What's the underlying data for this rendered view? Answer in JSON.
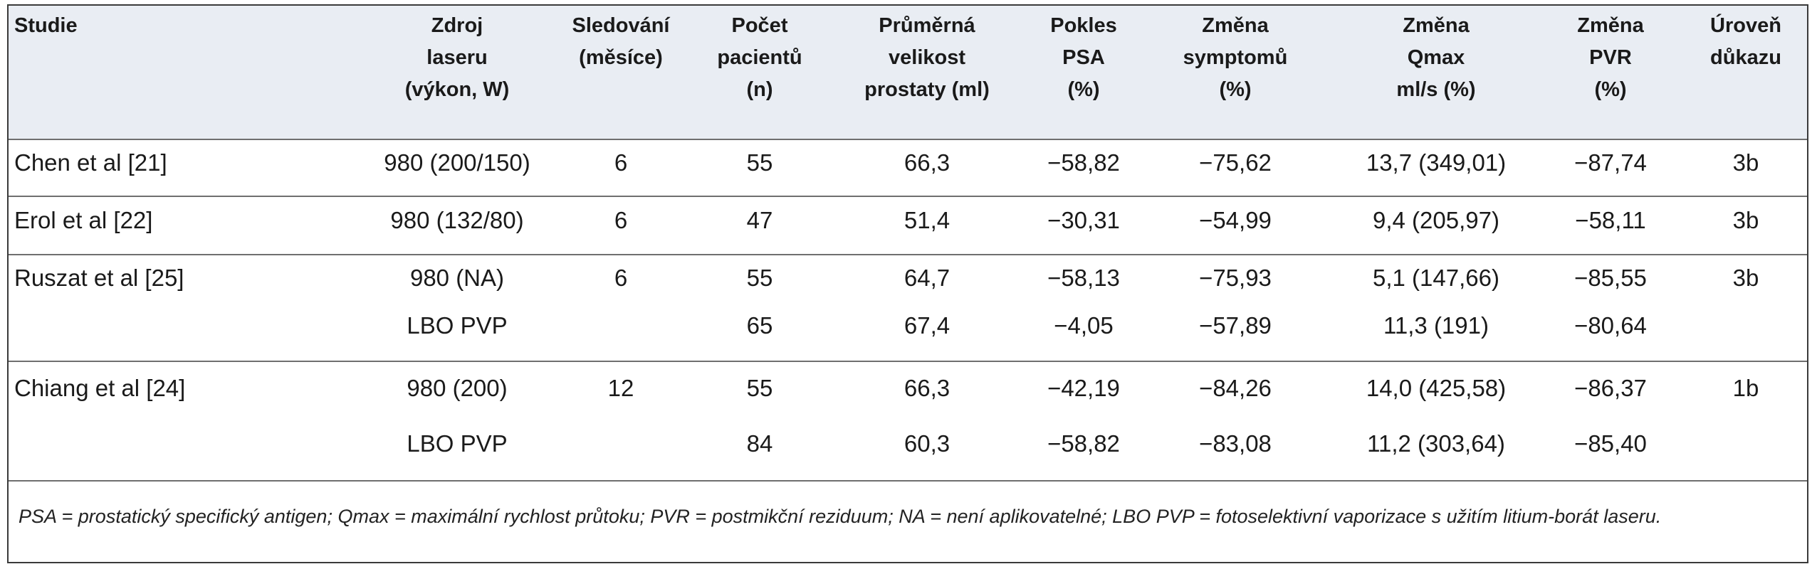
{
  "table": {
    "headers": [
      [
        "Studie"
      ],
      [
        "Zdroj",
        "laseru",
        "(výkon, W)"
      ],
      [
        "Sledování",
        "(měsíce)"
      ],
      [
        "Počet",
        "pacientů",
        "(n)"
      ],
      [
        "Průměrná",
        "velikost",
        "prostaty (ml)"
      ],
      [
        "Pokles",
        "PSA",
        "(%)"
      ],
      [
        "Změna",
        "symptomů",
        "(%)"
      ],
      [
        "Změna",
        "Qmax",
        "ml/s (%)"
      ],
      [
        "Změna",
        "PVR",
        "(%)"
      ],
      [
        "Úroveň",
        "důkazu"
      ]
    ],
    "rows": [
      [
        "Chen et al [21]",
        "980 (200/150)",
        "6",
        "55",
        "66,3",
        "−58,82",
        "−75,62",
        "13,7 (349,01)",
        "−87,74",
        "3b"
      ],
      [
        "Erol et al [22]",
        "980 (132/80)",
        "6",
        "47",
        "51,4",
        "−30,31",
        "−54,99",
        "9,4 (205,97)",
        "−58,11",
        "3b"
      ],
      [
        "Ruszat et al [25]",
        "980 (NA)",
        "6",
        "55",
        "64,7",
        "−58,13",
        "−75,93",
        "5,1 (147,66)",
        "−85,55",
        "3b"
      ],
      [
        "",
        "LBO PVP",
        "",
        "65",
        "67,4",
        "−4,05",
        "−57,89",
        "11,3 (191)",
        "−80,64",
        ""
      ],
      [
        "Chiang et al [24]",
        "980 (200)",
        "12",
        "55",
        "66,3",
        "−42,19",
        "−84,26",
        "14,0 (425,58)",
        "−86,37",
        "1b"
      ],
      [
        "",
        "LBO PVP",
        "",
        "84",
        "60,3",
        "−58,82",
        "−83,08",
        "11,2 (303,64)",
        "−85,40",
        ""
      ]
    ],
    "footnote": "PSA = prostatický specifický antigen; Qmax = maximální rychlost průtoku; PVR = postmikční reziduum; NA = není aplikovatelné; LBO PVP = fotoselektivní vaporizace s užitím litium-borát laseru."
  }
}
